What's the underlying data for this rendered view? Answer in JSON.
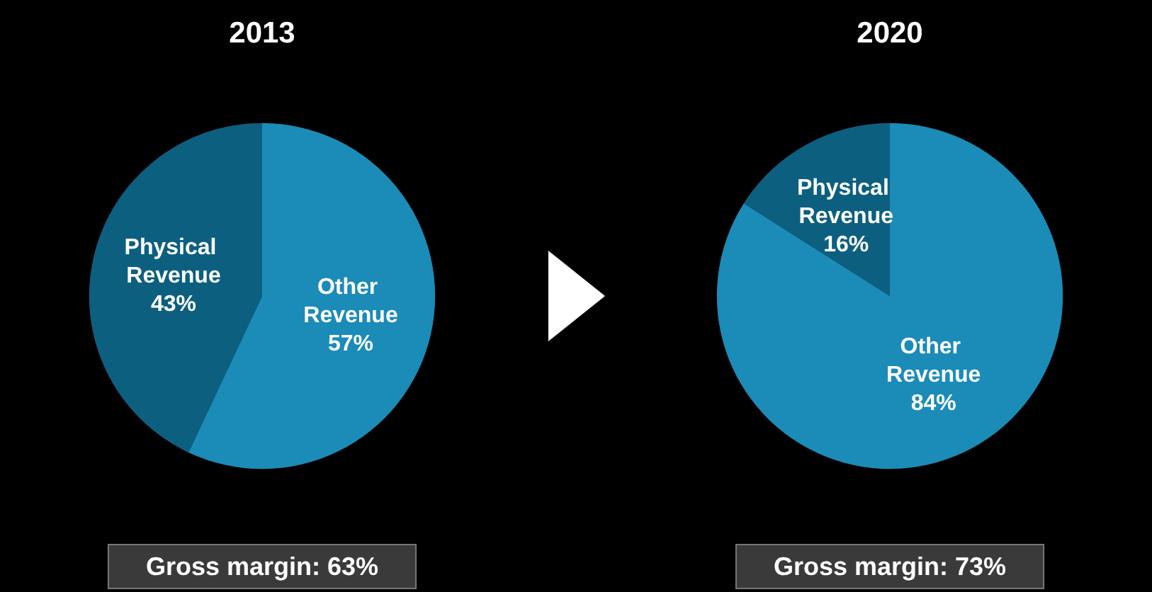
{
  "chart_data": [
    {
      "type": "pie",
      "title": "2013",
      "categories": [
        "Physical Revenue",
        "Other Revenue"
      ],
      "values": [
        43,
        57
      ],
      "value_labels": [
        "43%",
        "57%"
      ],
      "colors": [
        "#0d5f80",
        "#1b8bb8"
      ],
      "legend": false,
      "annotations": [
        "Gross margin: 63%"
      ]
    },
    {
      "type": "pie",
      "title": "2020",
      "categories": [
        "Physical Revenue",
        "Other Revenue"
      ],
      "values": [
        16,
        84
      ],
      "value_labels": [
        "16%",
        "84%"
      ],
      "colors": [
        "#0d5f80",
        "#1b8bb8"
      ],
      "legend": false,
      "annotations": [
        "Gross margin: 73%"
      ]
    }
  ]
}
